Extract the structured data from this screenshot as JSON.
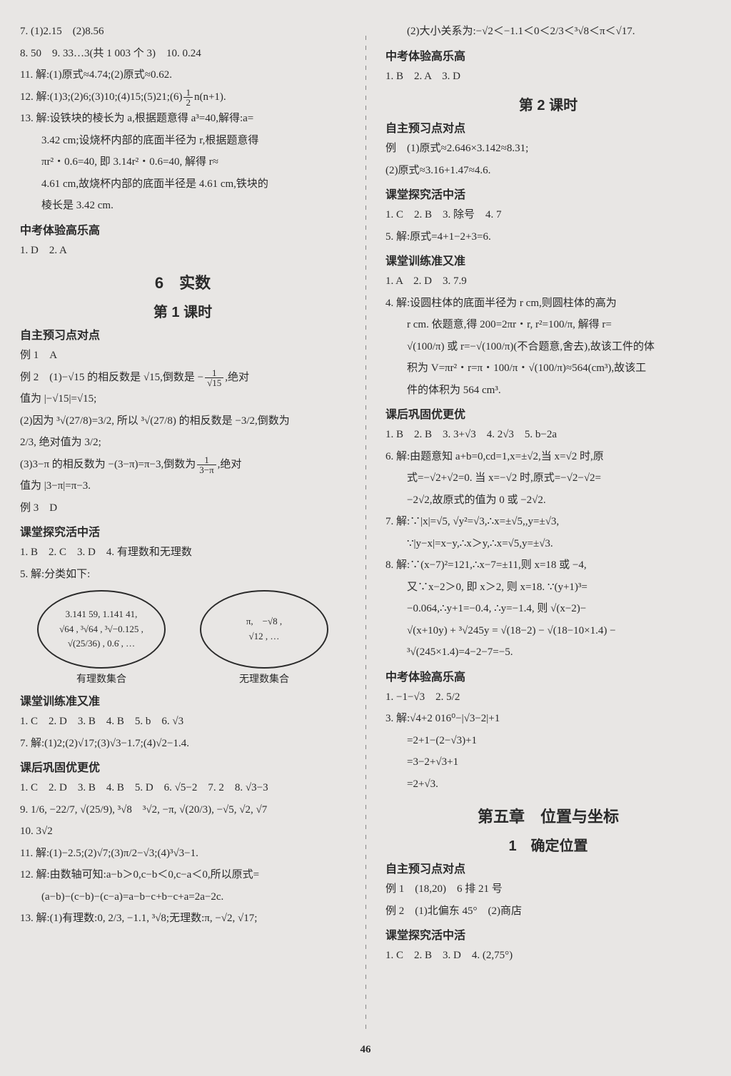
{
  "left": {
    "l7": "7. (1)2.15　(2)8.56",
    "l8": "8. 50　9. 33…3(共 1 003 个 3)　10. 0.24",
    "l11": "11. 解:(1)原式≈4.74;(2)原式≈0.62.",
    "l12a": "12. 解:(1)3;(2)6;(3)10;(4)15;(5)21;(6)",
    "l12f_n": "1",
    "l12f_d": "2",
    "l12b": "n(n+1).",
    "l13a": "13. 解:设铁块的棱长为 a,根据题意得 a³=40,解得:a=",
    "l13b": "3.42 cm;设烧杯内部的底面半径为 r,根据题意得",
    "l13c": "πr²・0.6=40, 即 3.14r²・0.6=40, 解得 r≈",
    "l13d": "4.61 cm,故烧杯内部的底面半径是 4.61 cm,铁块的",
    "l13e": "棱长是 3.42 cm.",
    "zk1_title": "中考体验高乐高",
    "zk1": "1. D　2. A",
    "ch6": "6　实数",
    "lesson1": "第 1 课时",
    "zzyx1": "自主预习点对点",
    "ex1": "例 1　A",
    "ex2a": "例 2　(1)−√15 的相反数是 √15,倒数是 −",
    "ex2f_n": "1",
    "ex2f_d": "√15",
    "ex2b": ",绝对",
    "ex2c": "值为 |−√15|=√15;",
    "ex2d": "(2)因为 ³√(27/8)=3/2, 所以 ³√(27/8) 的相反数是 −3/2,倒数为",
    "ex2e": "2/3, 绝对值为 3/2;",
    "ex2f": "(3)3−π 的相反数为 −(3−π)=π−3,倒数为",
    "ex2g_n": "1",
    "ex2g_d": "3−π",
    "ex2h": ",绝对",
    "ex2i": "值为 |3−π|=π−3.",
    "ex3": "例 3　D",
    "kt1_title": "课堂探究活中活",
    "kt1": "1. B　2. C　3. D　4. 有理数和无理数",
    "kt5": "5. 解:分类如下:",
    "venn1a": "3.141 59, 1.141 41,",
    "venn1b": "√64 , ³√64 , ³√−0.125 ,",
    "venn1c": "√(25/36) , 0.6̇ , …",
    "venn2a": "π,　−√8 ,",
    "venn2b": "√12 , …",
    "vennlbl1": "有理数集合",
    "vennlbl2": "无理数集合",
    "kxl_title": "课堂训练准又准",
    "kxl1": "1. C　2. D　3. B　4. B　5. b　6. √3",
    "kxl7": "7. 解:(1)2;(2)√17;(3)√3−1.7;(4)√2−1.4.",
    "khg_title": "课后巩固优更优",
    "khg1": "1. C　2. D　3. B　4. B　5. D　6. √5−2　7. 2　8. √3−3",
    "khg9": "9. 1/6, −22/7, √(25/9), ³√8　³√2, −π, √(20/3), −√5, √2, √7",
    "khg10": "10. 3√2",
    "khg11": "11. 解:(1)−2.5;(2)√7;(3)π/2−√3;(4)³√3−1.",
    "khg12a": "12. 解:由数轴可知:a−b＞0,c−b＜0,c−a＜0,所以原式=",
    "khg12b": "(a−b)−(c−b)−(c−a)=a−b−c+b−c+a=2a−2c.",
    "khg13": "13. 解:(1)有理数:0, 2/3, −1.1, ³√8;无理数:π, −√2, √17;"
  },
  "right": {
    "r0": "(2)大小关系为:−√2＜−1.1＜0＜2/3＜³√8＜π＜√17.",
    "zk_title": "中考体验高乐高",
    "zk": "1. B　2. A　3. D",
    "lesson2": "第 2 课时",
    "zzyx_title": "自主预习点对点",
    "zzyx1": "例　(1)原式≈2.646×3.142≈8.31;",
    "zzyx2": "(2)原式≈3.16+1.47≈4.6.",
    "kt_title": "课堂探究活中活",
    "kt1": "1. C　2. B　3. 除号　4. 7",
    "kt5": "5. 解:原式=4+1−2+3=6.",
    "kxl_title": "课堂训练准又准",
    "kxl1": "1. A　2. D　3. 7.9",
    "kxl4a": "4. 解:设圆柱体的底面半径为 r cm,则圆柱体的高为",
    "kxl4b": "r cm. 依题意,得 200=2πr・r, r²=100/π, 解得 r=",
    "kxl4c": "√(100/π) 或 r=−√(100/π)(不合题意,舍去),故该工件的体",
    "kxl4d": "积为 V=πr²・r=π・100/π・√(100/π)≈564(cm³),故该工",
    "kxl4e": "件的体积为 564 cm³.",
    "khg_title": "课后巩固优更优",
    "khg1": "1. B　2. B　3. 3+√3　4. 2√3　5. b−2a",
    "khg6a": "6. 解:由题意知 a+b=0,cd=1,x=±√2,当 x=√2 时,原",
    "khg6b": "式=−√2+√2=0. 当 x=−√2 时,原式=−√2−√2=",
    "khg6c": "−2√2,故原式的值为 0 或 −2√2.",
    "khg7a": "7. 解:∵|x|=√5, √y²=√3,∴x=±√5,,y=±√3,",
    "khg7b": "∵|y−x|=x−y,∴x＞y,∴x=√5,y=±√3.",
    "khg8a": "8. 解:∵(x−7)²=121,∴x−7=±11,则 x=18 或 −4,",
    "khg8b": "又∵x−2＞0, 即 x＞2, 则 x=18. ∵(y+1)³=",
    "khg8c": "−0.064,∴y+1=−0.4, ∴y=−1.4, 则 √(x−2)−",
    "khg8d": "√(x+10y) + ³√245y = √(18−2) − √(18−10×1.4) −",
    "khg8e": "³√(245×1.4)=4−2−7=−5.",
    "zk2_title": "中考体验高乐高",
    "zk2_1": "1. −1−√3　2. 5/2",
    "zk2_3a": "3. 解:√4+2 016⁰−|√3−2|+1",
    "zk2_3b": "=2+1−(2−√3)+1",
    "zk2_3c": "=3−2+√3+1",
    "zk2_3d": "=2+√3.",
    "ch5": "第五章　位置与坐标",
    "sec1": "1　确定位置",
    "zzyx2_title": "自主预习点对点",
    "ex1b": "例 1　(18,20)　6 排 21 号",
    "ex2b2": "例 2　(1)北偏东 45°　(2)商店",
    "kt2_title": "课堂探究活中活",
    "kt2": "1. C　2. B　3. D　4. (2,75°)"
  },
  "pagenum": "46"
}
